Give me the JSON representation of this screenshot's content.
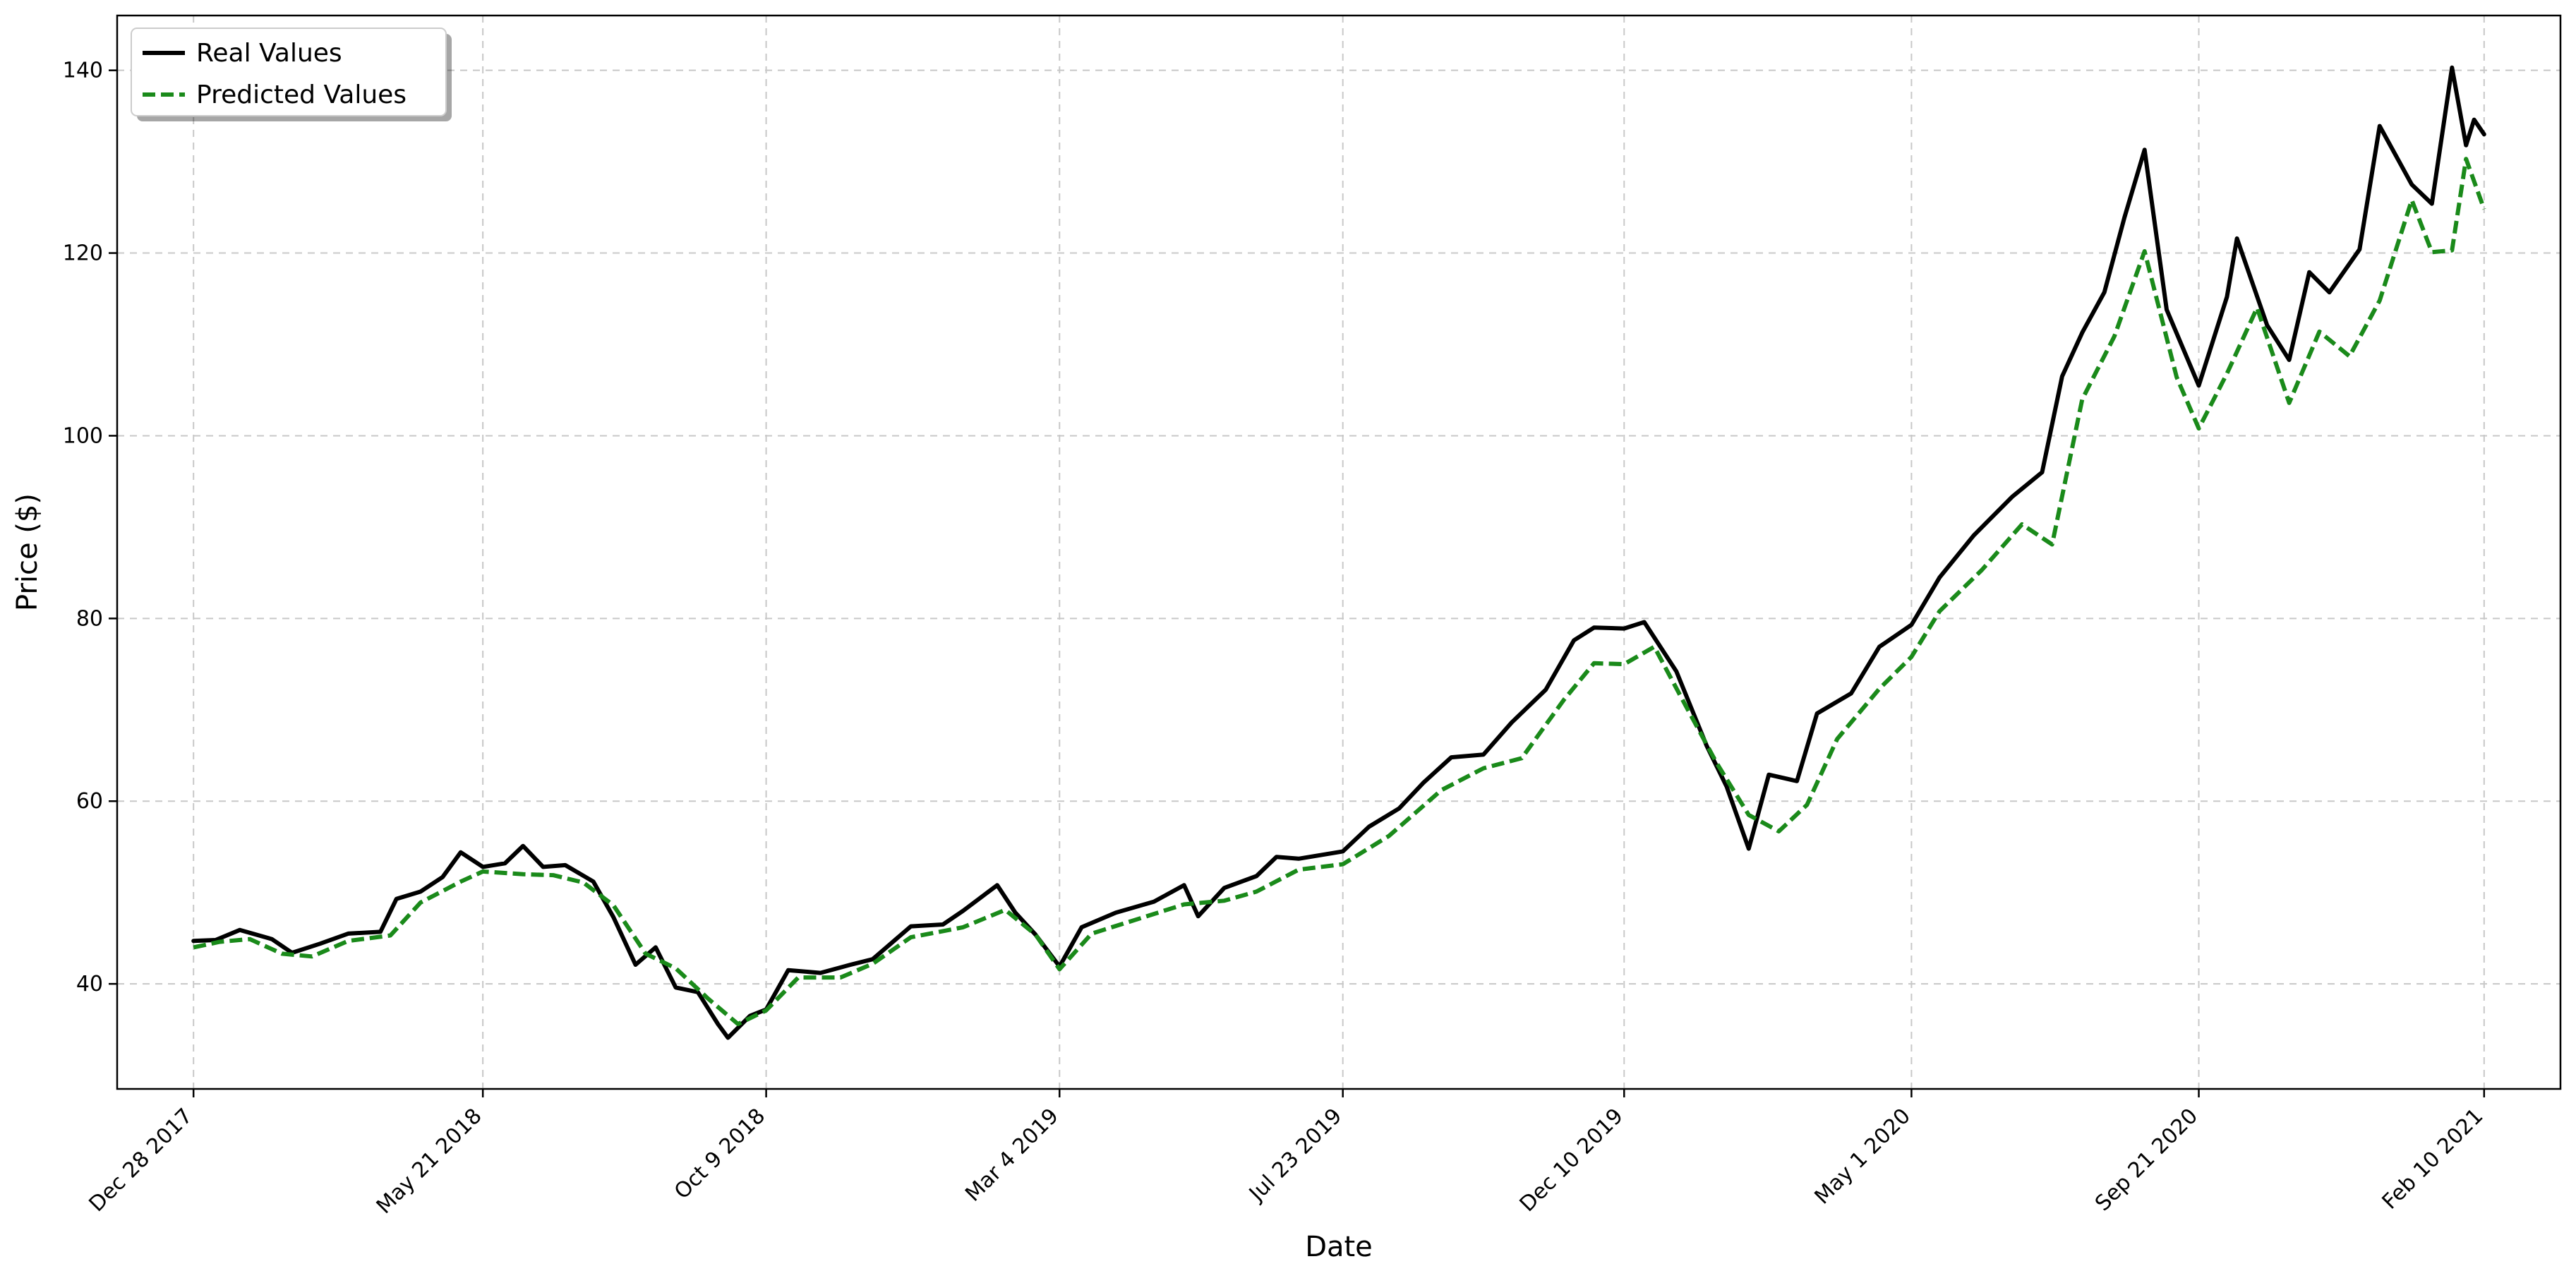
{
  "chart_data": {
    "type": "line",
    "title": "",
    "xlabel": "Date",
    "ylabel": "Price ($)",
    "x_tick_labels": [
      "Dec 28 2017",
      "May 21 2018",
      "Oct 9 2018",
      "Mar 4 2019",
      "Jul 23 2019",
      "Dec 10 2019",
      "May 1 2020",
      "Sep 21 2020",
      "Feb 10 2021"
    ],
    "x_tick_dates": [
      "2017-12-28",
      "2018-05-21",
      "2018-10-09",
      "2019-03-04",
      "2019-07-23",
      "2019-12-10",
      "2020-05-01",
      "2020-09-21",
      "2021-02-10"
    ],
    "xlim": [
      "2017-11-20",
      "2021-03-20"
    ],
    "y_ticks": [
      40,
      60,
      80,
      100,
      120,
      140
    ],
    "ylim": [
      28.5,
      146
    ],
    "grid": true,
    "legend": "top-left",
    "series": [
      {
        "name": "Real Values",
        "color": "#000000",
        "style": "solid",
        "points": [
          [
            "2017-12-28",
            44.7
          ],
          [
            "2018-01-08",
            44.8
          ],
          [
            "2018-01-20",
            45.9
          ],
          [
            "2018-02-05",
            44.9
          ],
          [
            "2018-02-15",
            43.4
          ],
          [
            "2018-03-01",
            44.4
          ],
          [
            "2018-03-15",
            45.5
          ],
          [
            "2018-03-31",
            45.7
          ],
          [
            "2018-04-08",
            49.3
          ],
          [
            "2018-04-20",
            50.1
          ],
          [
            "2018-05-01",
            51.7
          ],
          [
            "2018-05-10",
            54.4
          ],
          [
            "2018-05-21",
            52.8
          ],
          [
            "2018-06-01",
            53.2
          ],
          [
            "2018-06-10",
            55.1
          ],
          [
            "2018-06-20",
            52.8
          ],
          [
            "2018-07-01",
            53.0
          ],
          [
            "2018-07-15",
            51.2
          ],
          [
            "2018-07-25",
            47.3
          ],
          [
            "2018-08-05",
            42.1
          ],
          [
            "2018-08-15",
            44.0
          ],
          [
            "2018-08-25",
            39.6
          ],
          [
            "2018-09-05",
            39.1
          ],
          [
            "2018-09-15",
            35.6
          ],
          [
            "2018-09-20",
            34.1
          ],
          [
            "2018-10-01",
            36.5
          ],
          [
            "2018-10-09",
            37.2
          ],
          [
            "2018-10-20",
            41.5
          ],
          [
            "2018-11-05",
            41.2
          ],
          [
            "2018-11-20",
            42.1
          ],
          [
            "2018-12-01",
            42.7
          ],
          [
            "2018-12-10",
            44.4
          ],
          [
            "2018-12-20",
            46.3
          ],
          [
            "2019-01-05",
            46.5
          ],
          [
            "2019-01-15",
            48.0
          ],
          [
            "2019-02-01",
            50.8
          ],
          [
            "2019-02-10",
            47.8
          ],
          [
            "2019-02-20",
            45.4
          ],
          [
            "2019-03-04",
            41.9
          ],
          [
            "2019-03-15",
            46.2
          ],
          [
            "2019-04-01",
            47.8
          ],
          [
            "2019-04-20",
            49.0
          ],
          [
            "2019-05-05",
            50.8
          ],
          [
            "2019-05-12",
            47.4
          ],
          [
            "2019-05-25",
            50.5
          ],
          [
            "2019-06-10",
            51.8
          ],
          [
            "2019-06-20",
            53.9
          ],
          [
            "2019-07-01",
            53.7
          ],
          [
            "2019-07-23",
            54.5
          ],
          [
            "2019-08-05",
            57.2
          ],
          [
            "2019-08-20",
            59.2
          ],
          [
            "2019-09-01",
            62.0
          ],
          [
            "2019-09-15",
            64.8
          ],
          [
            "2019-10-01",
            65.1
          ],
          [
            "2019-10-15",
            68.6
          ],
          [
            "2019-11-01",
            72.2
          ],
          [
            "2019-11-15",
            77.6
          ],
          [
            "2019-11-25",
            79.0
          ],
          [
            "2019-12-10",
            78.9
          ],
          [
            "2019-12-20",
            79.6
          ],
          [
            "2020-01-05",
            74.2
          ],
          [
            "2020-01-20",
            66.1
          ],
          [
            "2020-01-30",
            61.6
          ],
          [
            "2020-02-10",
            54.8
          ],
          [
            "2020-02-20",
            62.9
          ],
          [
            "2020-03-05",
            62.2
          ],
          [
            "2020-03-15",
            69.6
          ],
          [
            "2020-04-01",
            71.8
          ],
          [
            "2020-04-15",
            76.9
          ],
          [
            "2020-05-01",
            79.3
          ],
          [
            "2020-05-15",
            84.5
          ],
          [
            "2020-06-01",
            89.1
          ],
          [
            "2020-06-20",
            93.3
          ],
          [
            "2020-07-05",
            96.0
          ],
          [
            "2020-07-15",
            106.5
          ],
          [
            "2020-07-25",
            111.3
          ],
          [
            "2020-08-05",
            115.7
          ],
          [
            "2020-08-15",
            123.9
          ],
          [
            "2020-08-25",
            131.3
          ],
          [
            "2020-09-05",
            113.8
          ],
          [
            "2020-09-21",
            105.5
          ],
          [
            "2020-10-05",
            115.2
          ],
          [
            "2020-10-10",
            121.6
          ],
          [
            "2020-10-25",
            112.1
          ],
          [
            "2020-11-05",
            108.3
          ],
          [
            "2020-11-15",
            117.9
          ],
          [
            "2020-11-25",
            115.7
          ],
          [
            "2020-12-10",
            120.4
          ],
          [
            "2020-12-20",
            133.9
          ],
          [
            "2021-01-05",
            127.5
          ],
          [
            "2021-01-15",
            125.4
          ],
          [
            "2021-01-25",
            140.3
          ],
          [
            "2021-02-01",
            131.8
          ],
          [
            "2021-02-05",
            134.6
          ],
          [
            "2021-02-10",
            133.0
          ]
        ]
      },
      {
        "name": "Predicted Values",
        "color": "#1a8a1a",
        "style": "dashed",
        "points": [
          [
            "2017-12-28",
            44.0
          ],
          [
            "2018-01-10",
            44.6
          ],
          [
            "2018-01-25",
            44.9
          ],
          [
            "2018-02-10",
            43.3
          ],
          [
            "2018-02-25",
            43.0
          ],
          [
            "2018-03-15",
            44.7
          ],
          [
            "2018-04-05",
            45.3
          ],
          [
            "2018-04-20",
            48.9
          ],
          [
            "2018-05-10",
            51.2
          ],
          [
            "2018-05-21",
            52.3
          ],
          [
            "2018-06-10",
            52.0
          ],
          [
            "2018-06-25",
            51.9
          ],
          [
            "2018-07-10",
            51.1
          ],
          [
            "2018-07-25",
            48.6
          ],
          [
            "2018-08-10",
            43.3
          ],
          [
            "2018-08-25",
            41.7
          ],
          [
            "2018-09-10",
            38.4
          ],
          [
            "2018-09-25",
            35.6
          ],
          [
            "2018-10-09",
            37.1
          ],
          [
            "2018-10-25",
            40.7
          ],
          [
            "2018-11-15",
            40.7
          ],
          [
            "2018-12-01",
            42.2
          ],
          [
            "2018-12-20",
            45.1
          ],
          [
            "2019-01-15",
            46.2
          ],
          [
            "2019-02-05",
            48.1
          ],
          [
            "2019-02-20",
            45.4
          ],
          [
            "2019-03-04",
            41.6
          ],
          [
            "2019-03-20",
            45.5
          ],
          [
            "2019-04-15",
            47.3
          ],
          [
            "2019-05-05",
            48.7
          ],
          [
            "2019-05-25",
            49.1
          ],
          [
            "2019-06-10",
            50.1
          ],
          [
            "2019-07-01",
            52.5
          ],
          [
            "2019-07-23",
            53.1
          ],
          [
            "2019-08-15",
            56.2
          ],
          [
            "2019-09-10",
            61.2
          ],
          [
            "2019-10-01",
            63.6
          ],
          [
            "2019-10-20",
            64.7
          ],
          [
            "2019-11-10",
            71.1
          ],
          [
            "2019-11-25",
            75.1
          ],
          [
            "2019-12-10",
            75.0
          ],
          [
            "2019-12-25",
            76.9
          ],
          [
            "2020-01-10",
            70.3
          ],
          [
            "2020-01-25",
            64.2
          ],
          [
            "2020-02-10",
            58.5
          ],
          [
            "2020-02-25",
            56.7
          ],
          [
            "2020-03-10",
            59.6
          ],
          [
            "2020-03-25",
            66.8
          ],
          [
            "2020-04-15",
            72.3
          ],
          [
            "2020-05-01",
            75.8
          ],
          [
            "2020-05-15",
            80.8
          ],
          [
            "2020-06-05",
            85.3
          ],
          [
            "2020-06-25",
            90.3
          ],
          [
            "2020-07-10",
            88.1
          ],
          [
            "2020-07-25",
            104.0
          ],
          [
            "2020-08-10",
            110.9
          ],
          [
            "2020-08-25",
            120.2
          ],
          [
            "2020-09-10",
            106.4
          ],
          [
            "2020-09-21",
            100.8
          ],
          [
            "2020-10-05",
            106.8
          ],
          [
            "2020-10-20",
            114.0
          ],
          [
            "2020-11-05",
            103.6
          ],
          [
            "2020-11-20",
            111.4
          ],
          [
            "2020-12-05",
            108.7
          ],
          [
            "2020-12-20",
            114.8
          ],
          [
            "2021-01-05",
            125.8
          ],
          [
            "2021-01-15",
            120.1
          ],
          [
            "2021-01-25",
            120.3
          ],
          [
            "2021-02-01",
            130.3
          ],
          [
            "2021-02-10",
            124.8
          ]
        ]
      }
    ]
  }
}
